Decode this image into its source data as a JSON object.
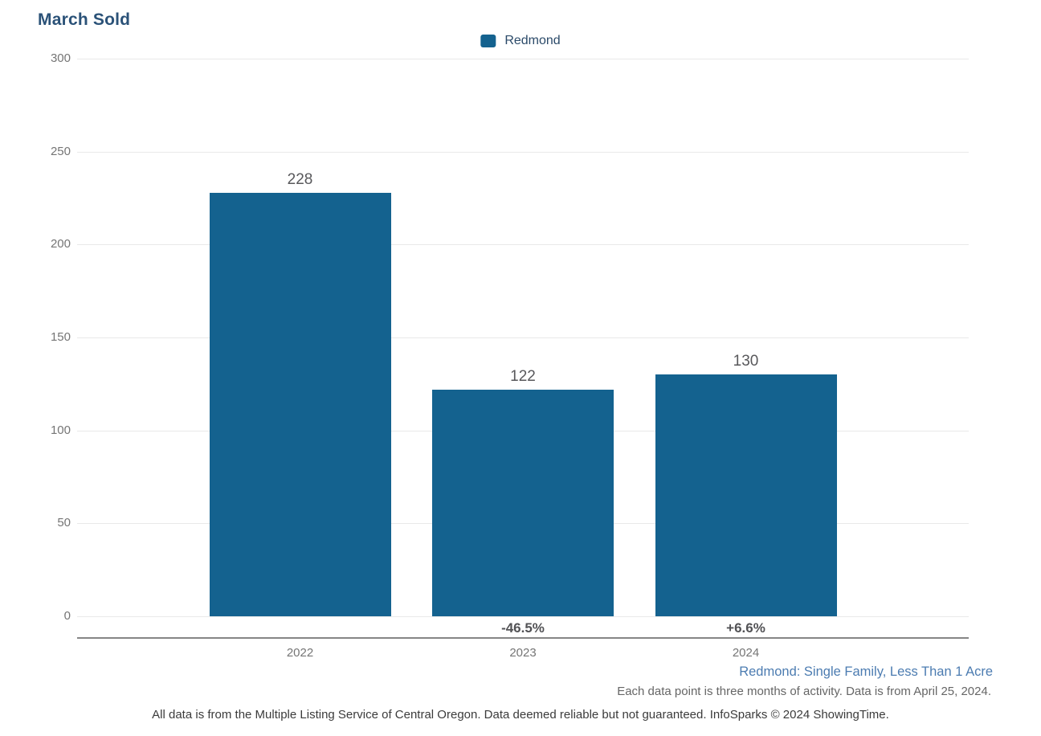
{
  "title": "March Sold",
  "legend": {
    "label": "Redmond",
    "swatch_color": "#14628f"
  },
  "chart_data": {
    "type": "bar",
    "title": "March Sold",
    "categories": [
      "2022",
      "2023",
      "2024"
    ],
    "series": [
      {
        "name": "Redmond",
        "values": [
          228,
          122,
          130
        ]
      }
    ],
    "value_labels": [
      "228",
      "122",
      "130"
    ],
    "pct_change_labels": [
      "",
      "-46.5%",
      "+6.6%"
    ],
    "ylim": [
      0,
      300
    ],
    "yticks": [
      0,
      50,
      100,
      150,
      200,
      250,
      300
    ],
    "grid": true,
    "legend_position": "top-center",
    "bar_color": "#14628f"
  },
  "footer": {
    "segment_label": "Redmond: Single Family, Less Than 1 Acre",
    "data_note": "Each data point is three months of activity. Data is from April 25, 2024.",
    "attribution": "All data is from the Multiple Listing Service of Central Oregon. Data deemed reliable but not guaranteed. InfoSparks © 2024 ShowingTime."
  }
}
